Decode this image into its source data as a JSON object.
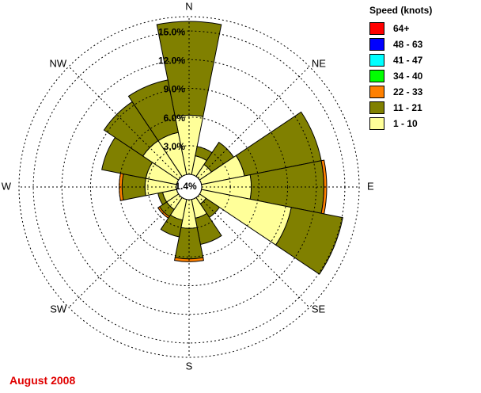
{
  "period_label": "August 2008",
  "legend": {
    "title": "Speed (knots)",
    "items": [
      {
        "label": "64+",
        "color": "#ff0000"
      },
      {
        "label": "48 - 63",
        "color": "#0000ff"
      },
      {
        "label": "41 - 47",
        "color": "#00ffff"
      },
      {
        "label": "34 - 40",
        "color": "#00ff00"
      },
      {
        "label": "22 - 33",
        "color": "#ff8000"
      },
      {
        "label": "11 - 21",
        "color": "#808000"
      },
      {
        "label": "1 - 10",
        "color": "#ffff99"
      }
    ]
  },
  "chart_data": {
    "type": "wind-rose",
    "directions": [
      "N",
      "NNE",
      "NE",
      "ENE",
      "E",
      "ESE",
      "SE",
      "SSE",
      "S",
      "SSW",
      "SW",
      "WSW",
      "W",
      "WNW",
      "NW",
      "NNW"
    ],
    "compass_labels": [
      "N",
      "NE",
      "E",
      "SE",
      "S",
      "SW",
      "W",
      "NW"
    ],
    "calm_label": "1.4%",
    "calm_percent": 1.4,
    "ring_values": [
      3.0,
      6.0,
      9.0,
      12.0,
      15.0
    ],
    "ring_labels": [
      "3.0%",
      "6.0%",
      "9.0%",
      "12.0%",
      "15.0%"
    ],
    "rmax": 16.5,
    "speed_bins": [
      "1 - 10",
      "11 - 21",
      "22 - 33"
    ],
    "series": [
      {
        "name": "1 - 10",
        "values": [
          6.2,
          2.0,
          1.5,
          4.6,
          5.2,
          9.6,
          0.8,
          2.0,
          3.0,
          2.2,
          1.5,
          1.5,
          3.3,
          3.3,
          4.5,
          4.5
        ]
      },
      {
        "name": "11 - 21",
        "values": [
          9.8,
          1.0,
          2.8,
          8.2,
          7.6,
          5.5,
          1.7,
          2.8,
          3.2,
          1.8,
          0.9,
          0.5,
          2.4,
          4.7,
          4.9,
          5.6
        ]
      },
      {
        "name": "22 - 33",
        "values": [
          0,
          0,
          0,
          0,
          0.3,
          0,
          0,
          0,
          0.3,
          0,
          0.2,
          0,
          0.3,
          0,
          0,
          0
        ]
      }
    ]
  }
}
